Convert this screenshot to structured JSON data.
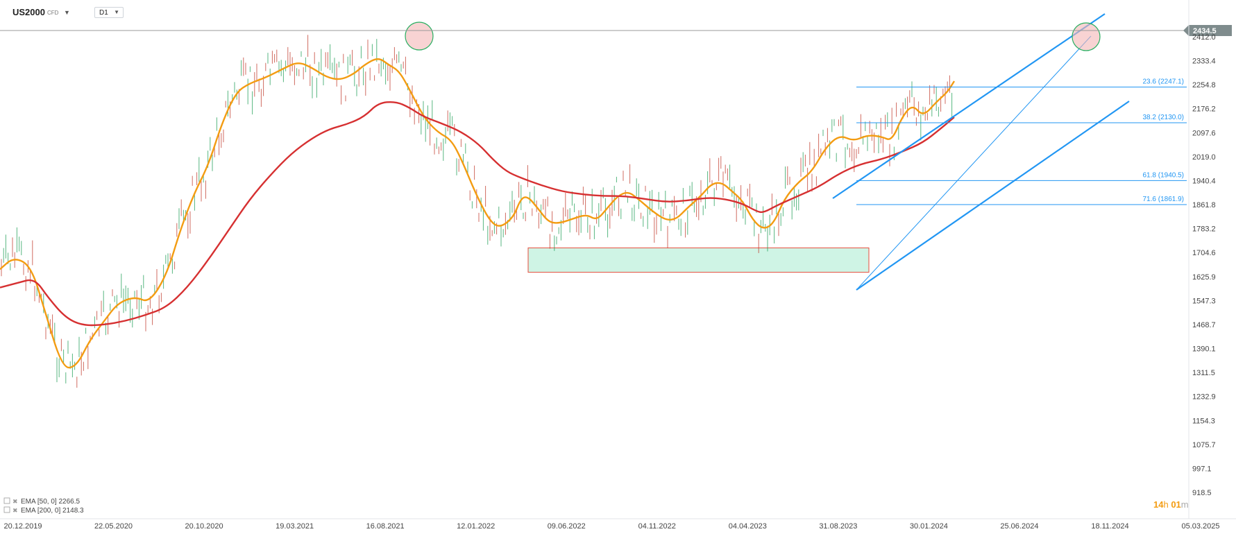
{
  "toolbar": {
    "symbol": "US2000",
    "symbol_type": "CFD",
    "timeframe": "D1"
  },
  "chart_data": {
    "type": "line",
    "instrument": "US2000",
    "timeframe": "D1",
    "current_price": "2434.5",
    "countdown": {
      "h": "14",
      "h_unit": "h",
      "m": "01",
      "m_unit": "m"
    },
    "y_ticks": [
      "2412.0",
      "2333.4",
      "2254.8",
      "2176.2",
      "2097.6",
      "2019.0",
      "1940.4",
      "1861.8",
      "1783.2",
      "1704.6",
      "1625.9",
      "1547.3",
      "1468.7",
      "1390.1",
      "1311.5",
      "1232.9",
      "1154.3",
      "1075.7",
      "997.1",
      "918.5"
    ],
    "x_ticks": [
      "20.12.2019",
      "22.05.2020",
      "20.10.2020",
      "19.03.2021",
      "16.08.2021",
      "12.01.2022",
      "09.06.2022",
      "04.11.2022",
      "04.04.2023",
      "31.08.2023",
      "30.01.2024",
      "25.06.2024",
      "18.11.2024",
      "05.03.2025"
    ],
    "ylim": [
      918.5,
      2434.5
    ],
    "fib_levels": [
      {
        "label": "23.6 (2247.1)",
        "value": 2247.1
      },
      {
        "label": "38.2 (2130.0)",
        "value": 2130.0
      },
      {
        "label": "61.8 (1940.5)",
        "value": 1940.5
      },
      {
        "label": "71.6 (1861.9)",
        "value": 1861.9
      }
    ],
    "legend": [
      {
        "label": "EMA [50, 0]",
        "value": "2266.5",
        "color": "#f39c12"
      },
      {
        "label": "EMA [200, 0]",
        "value": "2148.3",
        "color": "#d63031"
      }
    ],
    "support_zone": {
      "from": "06.2022",
      "to": "10.2023",
      "low": 1640,
      "high": 1720
    },
    "series": [
      {
        "name": "EMA [50, 0]",
        "color": "#f39c12",
        "values": [
          [
            0,
            1650
          ],
          [
            20,
            1690
          ],
          [
            45,
            1660
          ],
          [
            65,
            1510
          ],
          [
            90,
            1325
          ],
          [
            110,
            1330
          ],
          [
            130,
            1420
          ],
          [
            150,
            1480
          ],
          [
            170,
            1540
          ],
          [
            195,
            1560
          ],
          [
            215,
            1540
          ],
          [
            240,
            1630
          ],
          [
            260,
            1780
          ],
          [
            280,
            1900
          ],
          [
            300,
            1990
          ],
          [
            320,
            2130
          ],
          [
            340,
            2230
          ],
          [
            360,
            2260
          ],
          [
            385,
            2280
          ],
          [
            410,
            2310
          ],
          [
            430,
            2330
          ],
          [
            450,
            2310
          ],
          [
            470,
            2280
          ],
          [
            490,
            2270
          ],
          [
            510,
            2290
          ],
          [
            525,
            2320
          ],
          [
            545,
            2345
          ],
          [
            560,
            2320
          ],
          [
            575,
            2300
          ],
          [
            590,
            2240
          ],
          [
            610,
            2150
          ],
          [
            630,
            2100
          ],
          [
            650,
            2075
          ],
          [
            665,
            2010
          ],
          [
            685,
            1900
          ],
          [
            705,
            1810
          ],
          [
            720,
            1785
          ],
          [
            740,
            1820
          ],
          [
            750,
            1880
          ],
          [
            760,
            1890
          ],
          [
            775,
            1850
          ],
          [
            790,
            1805
          ],
          [
            805,
            1800
          ],
          [
            825,
            1815
          ],
          [
            845,
            1830
          ],
          [
            860,
            1810
          ],
          [
            875,
            1850
          ],
          [
            890,
            1890
          ],
          [
            905,
            1905
          ],
          [
            920,
            1880
          ],
          [
            940,
            1840
          ],
          [
            960,
            1810
          ],
          [
            975,
            1815
          ],
          [
            990,
            1850
          ],
          [
            1010,
            1890
          ],
          [
            1025,
            1930
          ],
          [
            1040,
            1935
          ],
          [
            1055,
            1905
          ],
          [
            1070,
            1875
          ],
          [
            1085,
            1810
          ],
          [
            1100,
            1780
          ],
          [
            1115,
            1800
          ],
          [
            1130,
            1880
          ],
          [
            1150,
            1935
          ],
          [
            1170,
            1970
          ],
          [
            1190,
            2050
          ],
          [
            1210,
            2090
          ],
          [
            1230,
            2070
          ],
          [
            1250,
            2090
          ],
          [
            1270,
            2085
          ],
          [
            1285,
            2070
          ],
          [
            1300,
            2150
          ],
          [
            1315,
            2190
          ],
          [
            1330,
            2150
          ],
          [
            1350,
            2200
          ],
          [
            1365,
            2230
          ],
          [
            1375,
            2266.5
          ]
        ]
      },
      {
        "name": "EMA [200, 0]",
        "color": "#d63031",
        "values": [
          [
            0,
            1590
          ],
          [
            25,
            1605
          ],
          [
            50,
            1620
          ],
          [
            70,
            1555
          ],
          [
            95,
            1490
          ],
          [
            120,
            1465
          ],
          [
            150,
            1468
          ],
          [
            180,
            1480
          ],
          [
            210,
            1500
          ],
          [
            240,
            1525
          ],
          [
            270,
            1590
          ],
          [
            300,
            1680
          ],
          [
            330,
            1780
          ],
          [
            360,
            1880
          ],
          [
            390,
            1960
          ],
          [
            420,
            2030
          ],
          [
            450,
            2080
          ],
          [
            475,
            2110
          ],
          [
            500,
            2125
          ],
          [
            525,
            2150
          ],
          [
            545,
            2195
          ],
          [
            570,
            2200
          ],
          [
            590,
            2180
          ],
          [
            610,
            2150
          ],
          [
            640,
            2125
          ],
          [
            665,
            2100
          ],
          [
            690,
            2060
          ],
          [
            710,
            2010
          ],
          [
            730,
            1970
          ],
          [
            750,
            1950
          ],
          [
            780,
            1925
          ],
          [
            810,
            1905
          ],
          [
            840,
            1895
          ],
          [
            870,
            1890
          ],
          [
            900,
            1890
          ],
          [
            930,
            1880
          ],
          [
            960,
            1870
          ],
          [
            990,
            1875
          ],
          [
            1020,
            1885
          ],
          [
            1045,
            1880
          ],
          [
            1070,
            1865
          ],
          [
            1090,
            1840
          ],
          [
            1100,
            1835
          ],
          [
            1120,
            1860
          ],
          [
            1150,
            1890
          ],
          [
            1180,
            1920
          ],
          [
            1210,
            1965
          ],
          [
            1240,
            1995
          ],
          [
            1270,
            2010
          ],
          [
            1300,
            2035
          ],
          [
            1330,
            2065
          ],
          [
            1355,
            2110
          ],
          [
            1375,
            2148.3
          ]
        ]
      }
    ]
  }
}
